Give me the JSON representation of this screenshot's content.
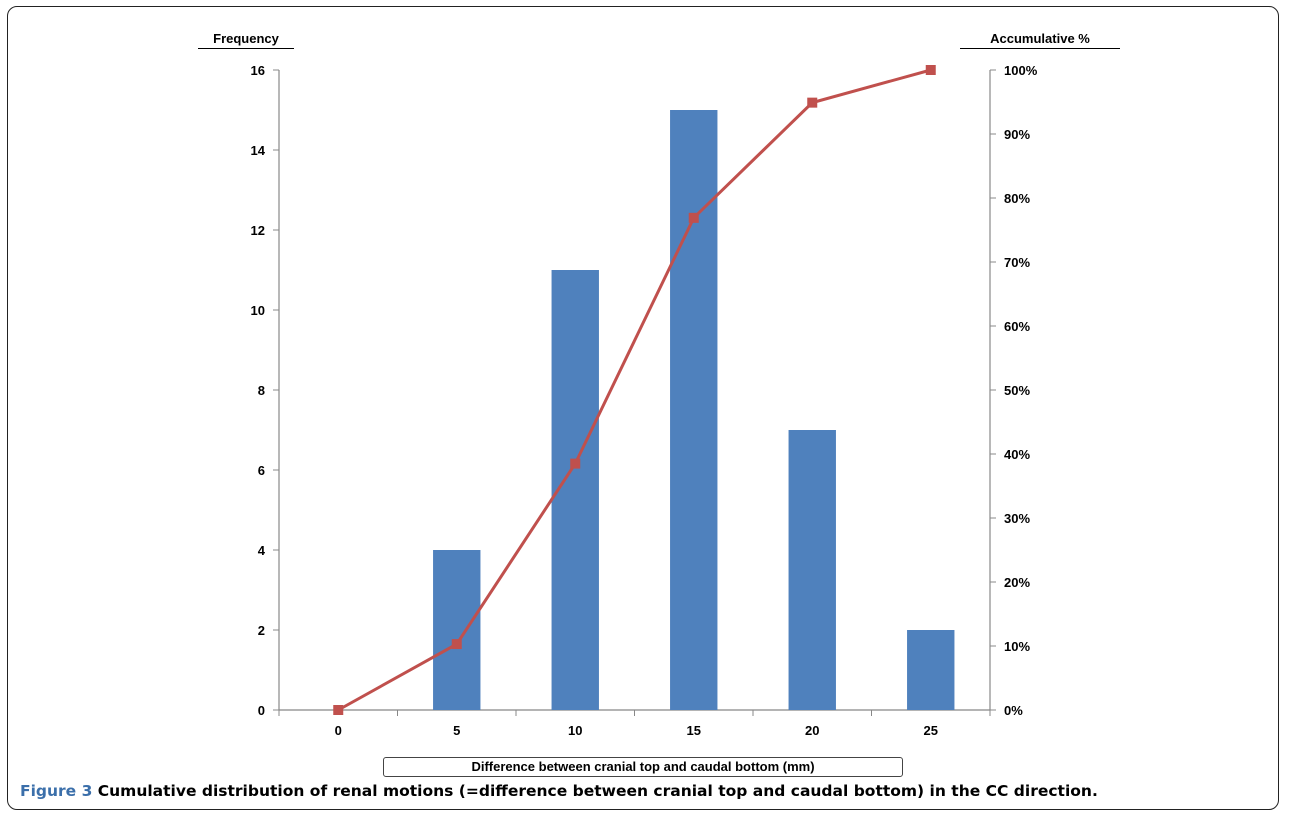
{
  "caption": {
    "number": "Figure 3",
    "text": " Cumulative distribution of renal motions (=difference between cranial top and caudal bottom) in the CC direction."
  },
  "colors": {
    "bar": "#4f81bd",
    "line": "#c0504d",
    "axis": "#888888"
  },
  "chart_data": {
    "type": "bar",
    "categories": [
      "0",
      "5",
      "10",
      "15",
      "20",
      "25"
    ],
    "series": [
      {
        "values": [
          0,
          4,
          11,
          15,
          7,
          2
        ],
        "axis": "left",
        "render": "bar"
      },
      {
        "values": [
          0,
          10.3,
          38.5,
          76.9,
          94.9,
          100
        ],
        "axis": "right",
        "render": "line-with-square-markers"
      }
    ],
    "xlabel": "Difference between cranial top and caudal bottom (mm)",
    "ylabel": "Frequency",
    "ylabel_right": "Accumulative %",
    "ylim": [
      0,
      16
    ],
    "ylim_right": [
      0,
      100
    ],
    "yticks": [
      "0",
      "2",
      "4",
      "6",
      "8",
      "10",
      "12",
      "14",
      "16"
    ],
    "yticks_right": [
      "0%",
      "10%",
      "20%",
      "30%",
      "40%",
      "50%",
      "60%",
      "70%",
      "80%",
      "90%",
      "100%"
    ],
    "grid": false,
    "legend": "none"
  }
}
